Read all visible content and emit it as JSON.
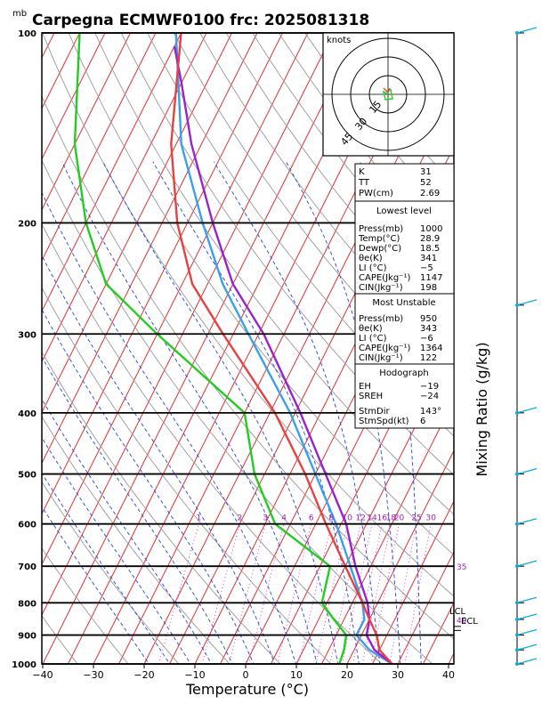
{
  "header": {
    "unit_label": "mb",
    "title": "Carpegna ECMWF0100 frc: 2025081318"
  },
  "axes": {
    "xlabel": "Temperature (°C)",
    "right_label": "Mixing Ratio (g/kg)",
    "pressure_ticks": [
      "100",
      "200",
      "300",
      "400",
      "500",
      "600",
      "700",
      "800",
      "900",
      "1000"
    ],
    "temp_ticks": [
      "−40",
      "−30",
      "−20",
      "−10",
      "0",
      "10",
      "20",
      "30",
      "40"
    ]
  },
  "mixing_ratio_labels": [
    "1",
    "2",
    "3",
    "4",
    "6",
    "8",
    "10",
    "12",
    "14",
    "16",
    "18",
    "20",
    "25",
    "30"
  ],
  "dry_adiabat_labels": [
    "35",
    "40"
  ],
  "level_labels": {
    "lcl": "LCL",
    "ecl": "ECL"
  },
  "hodograph": {
    "unit": "knots",
    "ring_labels": [
      "15",
      "30",
      "45"
    ]
  },
  "indices": {
    "top": [
      {
        "name": "K",
        "value": "31"
      },
      {
        "name": "TT",
        "value": "52"
      },
      {
        "name": "PW(cm)",
        "value": "2.69"
      }
    ],
    "lowest_title": "Lowest level",
    "lowest": [
      {
        "name": "Press(mb)",
        "value": "1000"
      },
      {
        "name": "Temp(°C)",
        "value": "28.9"
      },
      {
        "name": "Dewp(°C)",
        "value": "18.5"
      },
      {
        "name": "θe(K)",
        "value": "341"
      },
      {
        "name": "LI (°C)",
        "value": "−5"
      },
      {
        "name": "CAPE(Jkg⁻¹)",
        "value": "1147"
      },
      {
        "name": "CIN(Jkg⁻¹)",
        "value": "198"
      }
    ],
    "unstable_title": "Most Unstable",
    "unstable": [
      {
        "name": "Press(mb)",
        "value": "950"
      },
      {
        "name": "θe(K)",
        "value": "343"
      },
      {
        "name": "LI (°C)",
        "value": "−6"
      },
      {
        "name": "CAPE(Jkg⁻¹)",
        "value": "1364"
      },
      {
        "name": "CIN(Jkg⁻¹)",
        "value": "122"
      }
    ],
    "hodo_title": "Hodograph",
    "hodo": [
      {
        "name": "EH",
        "value": "−19"
      },
      {
        "name": "SREH",
        "value": "−24"
      },
      {
        "name": "StmDir",
        "value": "143°"
      },
      {
        "name": "StmSpd(kt)",
        "value": "6"
      }
    ]
  },
  "colors": {
    "temperature": "#e84040",
    "dewpoint": "#22cc22",
    "parcel": "#9922cc",
    "env_parcel": "#3aa0e8",
    "isotherm": "#e03030",
    "dry_adiabat": "#999999",
    "moist_adiabat": "#2244dd",
    "mixing": "#cc33cc",
    "wind": "#11aadd"
  },
  "chart_data": {
    "type": "skew-t",
    "title": "Carpegna ECMWF0100 frc: 2025081318",
    "xlabel": "Temperature (°C)",
    "ylabel": "mb",
    "xlim": [
      -40,
      40
    ],
    "ylim": [
      1000,
      100
    ],
    "series": [
      {
        "name": "temperature",
        "points": [
          [
            1000,
            28.9
          ],
          [
            950,
            25
          ],
          [
            900,
            23
          ],
          [
            850,
            20
          ],
          [
            800,
            17
          ],
          [
            700,
            10
          ],
          [
            600,
            2
          ],
          [
            500,
            -7
          ],
          [
            400,
            -19
          ],
          [
            300,
            -37
          ],
          [
            250,
            -48
          ],
          [
            200,
            -57
          ],
          [
            150,
            -66
          ],
          [
            100,
            -75
          ]
        ]
      },
      {
        "name": "dewpoint",
        "points": [
          [
            1000,
            18.5
          ],
          [
            950,
            18
          ],
          [
            900,
            17
          ],
          [
            850,
            13
          ],
          [
            800,
            9
          ],
          [
            700,
            7
          ],
          [
            600,
            -8
          ],
          [
            500,
            -17
          ],
          [
            400,
            -25
          ],
          [
            300,
            -50
          ],
          [
            250,
            -65
          ],
          [
            200,
            -75
          ],
          [
            150,
            -85
          ],
          [
            100,
            -95
          ]
        ]
      },
      {
        "name": "parcel",
        "points": [
          [
            1000,
            28.9
          ],
          [
            950,
            24
          ],
          [
            900,
            21
          ],
          [
            850,
            20
          ],
          [
            800,
            18
          ],
          [
            700,
            12
          ],
          [
            600,
            6
          ],
          [
            500,
            -3
          ],
          [
            400,
            -14
          ],
          [
            300,
            -29
          ],
          [
            250,
            -40
          ],
          [
            200,
            -50
          ],
          [
            150,
            -62
          ],
          [
            120,
            -70
          ],
          [
            105,
            -75
          ]
        ]
      },
      {
        "name": "environment_curve",
        "points": [
          [
            1000,
            28.9
          ],
          [
            950,
            23
          ],
          [
            900,
            19
          ],
          [
            850,
            19
          ],
          [
            800,
            17
          ],
          [
            700,
            11
          ],
          [
            600,
            4
          ],
          [
            500,
            -5
          ],
          [
            400,
            -16
          ],
          [
            300,
            -32
          ],
          [
            250,
            -42
          ],
          [
            200,
            -52
          ],
          [
            150,
            -64
          ],
          [
            100,
            -76
          ]
        ]
      }
    ],
    "wind_barbs_pressures": [
      100,
      270,
      400,
      500,
      600,
      700,
      800,
      850,
      900,
      950,
      1000
    ]
  }
}
